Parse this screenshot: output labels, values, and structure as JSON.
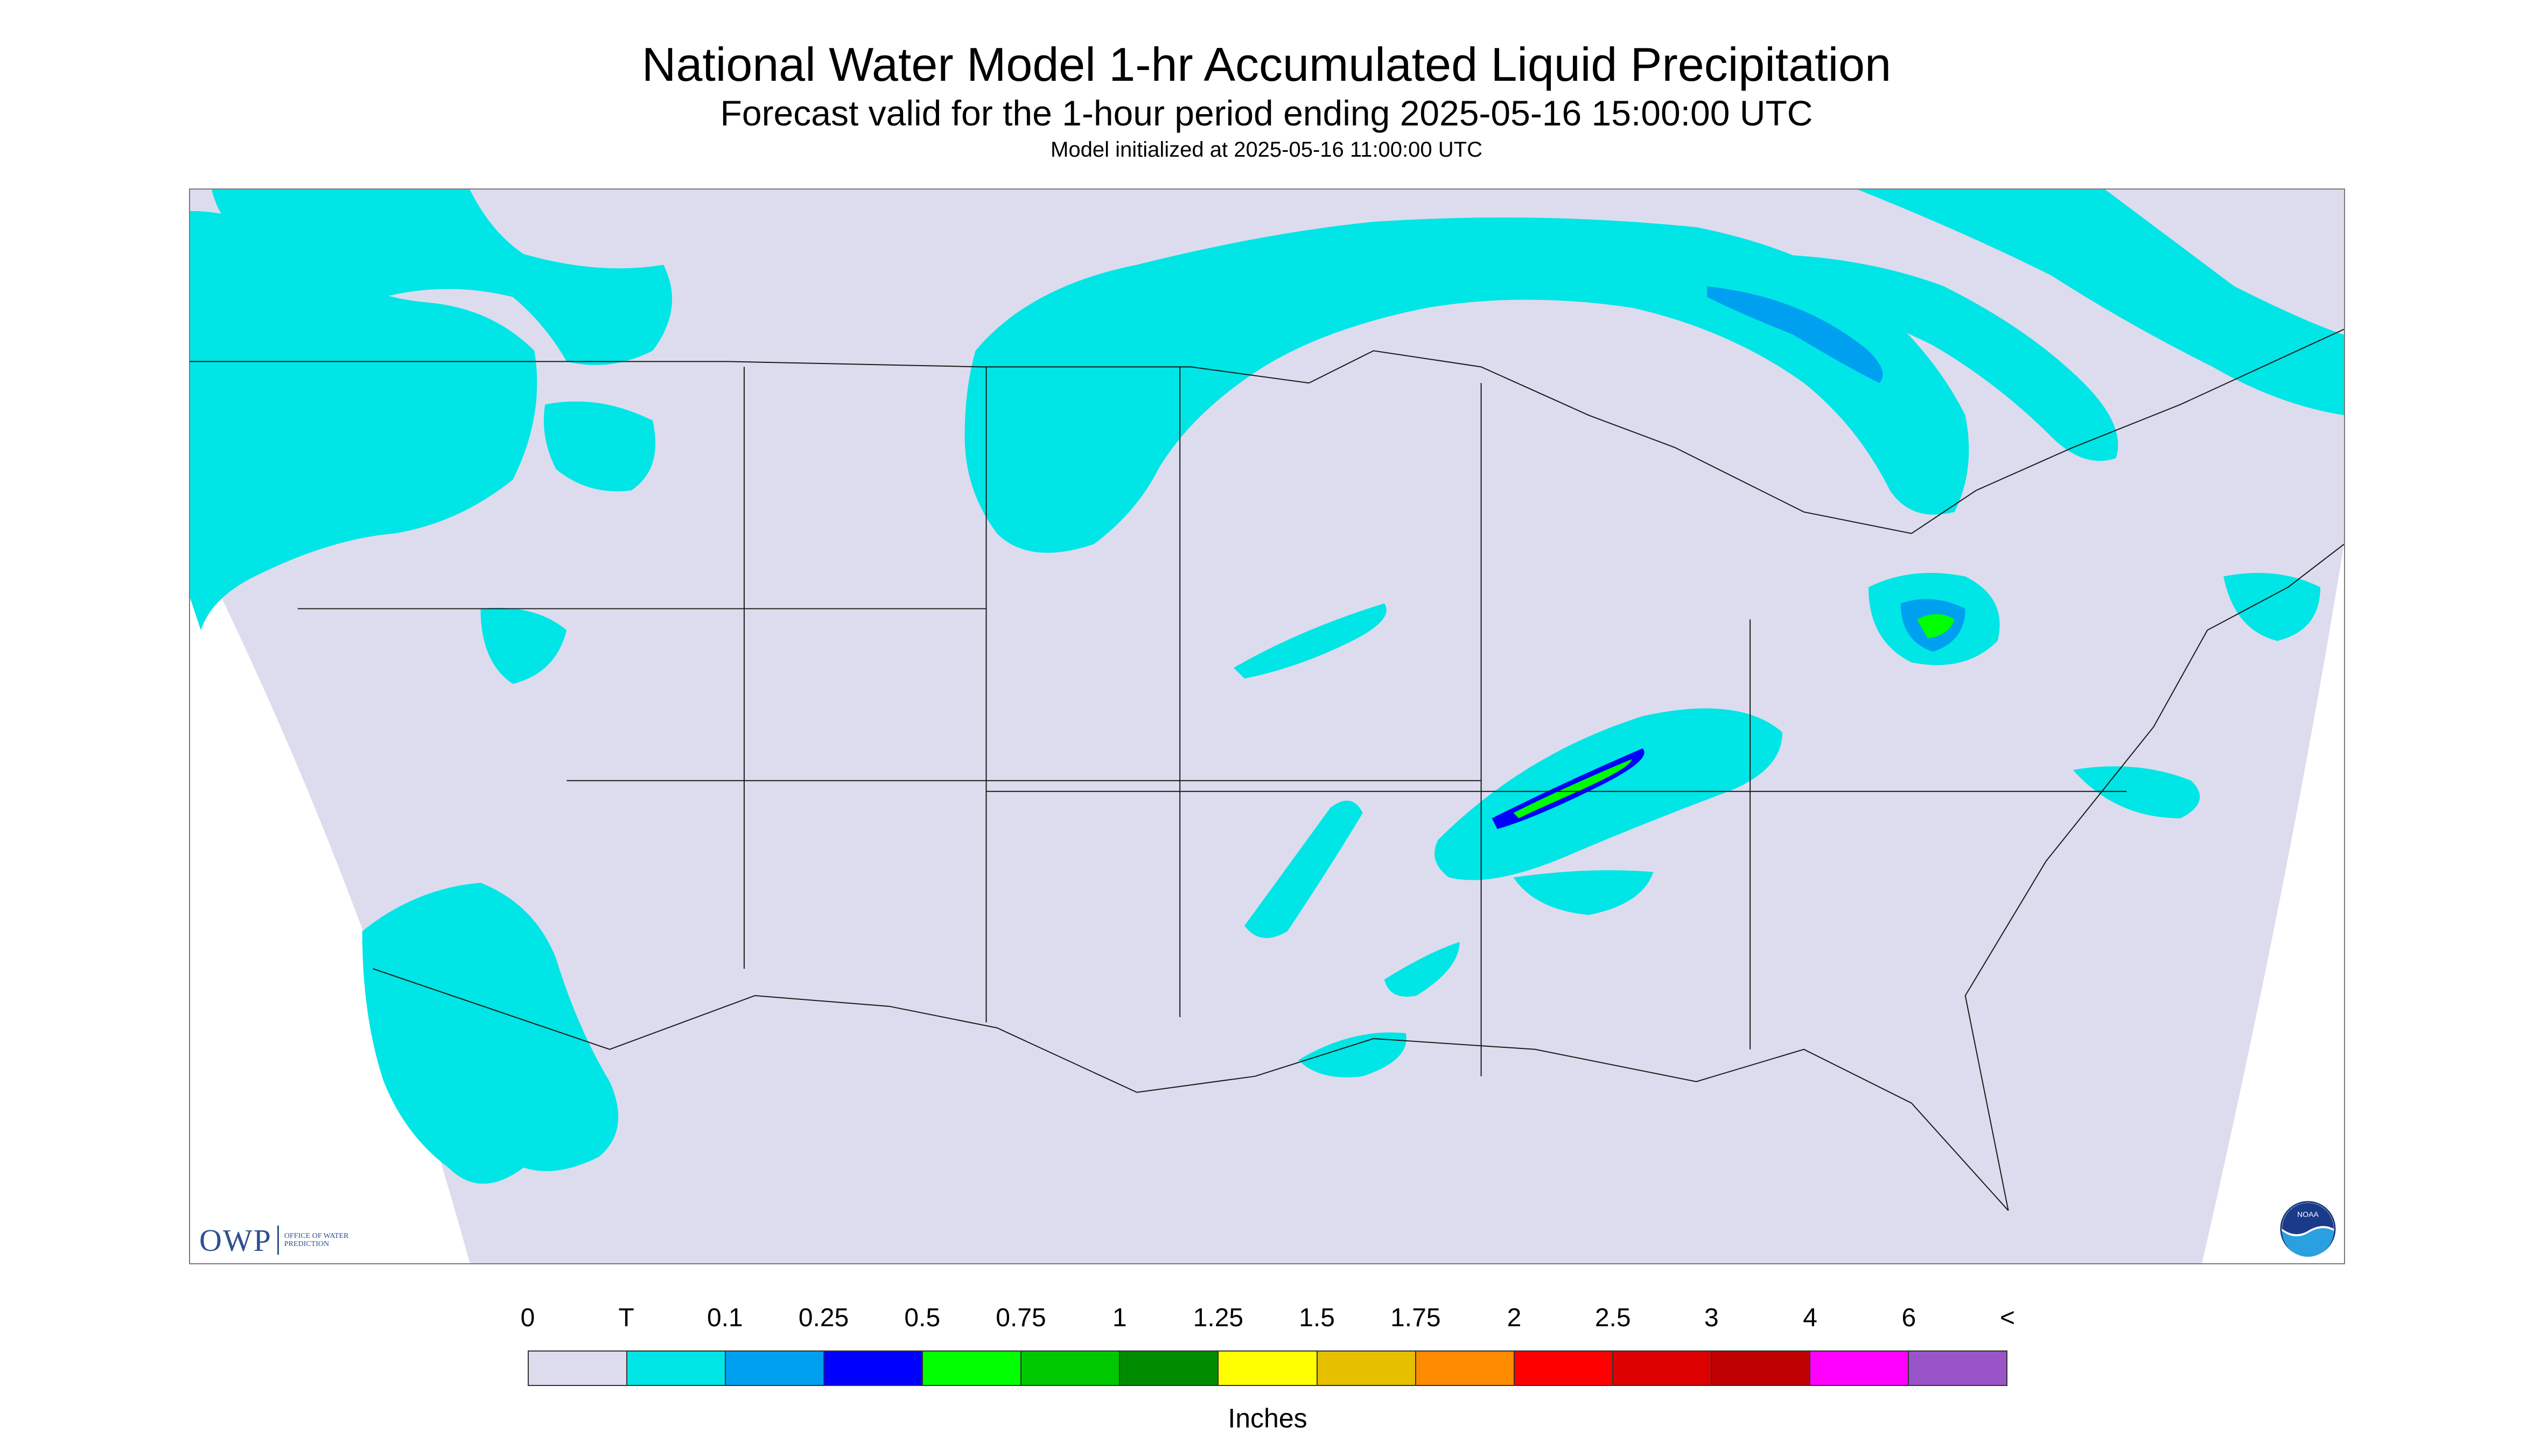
{
  "header": {
    "title": "National Water Model 1-hr Accumulated Liquid Precipitation",
    "subtitle": "Forecast valid for the 1-hour period ending 2025-05-16 15:00:00 UTC",
    "init_line": "Model initialized at 2025-05-16 11:00:00 UTC"
  },
  "map": {
    "background_color": "#dcdcee",
    "outside_domain_color": "#ffffff",
    "boundary_color": "#1a1a1a",
    "precip_colors": {
      "trace": "#00e5e5",
      "light": "#00a0f0",
      "moderate": "#0000ff",
      "heavy": "#00ff00",
      "heavier": "#00c800"
    }
  },
  "logos": {
    "owp_text": "OWP",
    "owp_small": "OFFICE OF WATER PREDICTION",
    "noaa_text": "NOAA"
  },
  "legend": {
    "labels": [
      "0",
      "T",
      "0.1",
      "0.25",
      "0.5",
      "0.75",
      "1",
      "1.25",
      "1.5",
      "1.75",
      "2",
      "2.5",
      "3",
      "4",
      "6",
      "<"
    ],
    "colors": [
      "#dcdcee",
      "#00e5e5",
      "#00a0f0",
      "#0000ff",
      "#00ff00",
      "#00c800",
      "#008c00",
      "#ffff00",
      "#e6c000",
      "#ff8c00",
      "#ff0000",
      "#dc0000",
      "#be0000",
      "#ff00ff",
      "#9955c8"
    ],
    "unit": "Inches"
  }
}
